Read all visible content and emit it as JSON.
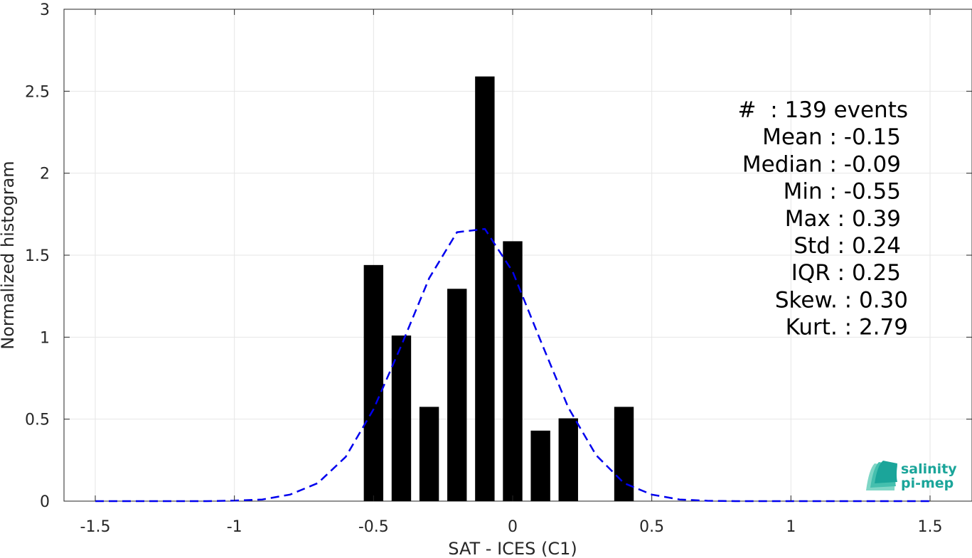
{
  "chart_data": {
    "type": "bar",
    "xlabel": "SAT - ICES (C1)",
    "ylabel": "Normalized histogram",
    "xlim": [
      -1.5,
      1.5
    ],
    "ylim": [
      0,
      3
    ],
    "xticks": [
      -1.5,
      -1,
      -0.5,
      0,
      0.5,
      1,
      1.5
    ],
    "xtick_labels": [
      "-1.5",
      "-1",
      "-0.5",
      "0",
      "0.5",
      "1",
      "1.5"
    ],
    "yticks": [
      0,
      0.5,
      1,
      1.5,
      2,
      2.5,
      3
    ],
    "ytick_labels": [
      "0",
      "0.5",
      "1",
      "1.5",
      "2",
      "2.5",
      "3"
    ],
    "grid": true,
    "bar_width": 0.07,
    "bars": [
      {
        "x": -0.5,
        "value": 1.44
      },
      {
        "x": -0.4,
        "value": 1.01
      },
      {
        "x": -0.3,
        "value": 0.575
      },
      {
        "x": -0.2,
        "value": 1.295
      },
      {
        "x": -0.1,
        "value": 2.59
      },
      {
        "x": 0.0,
        "value": 1.585
      },
      {
        "x": 0.1,
        "value": 0.43
      },
      {
        "x": 0.2,
        "value": 0.505
      },
      {
        "x": 0.4,
        "value": 0.575
      }
    ],
    "fit_curve": {
      "style": "dashed",
      "color": "#0000ee",
      "x": [
        -1.5,
        -1.4,
        -1.3,
        -1.2,
        -1.1,
        -1.0,
        -0.9,
        -0.8,
        -0.7,
        -0.6,
        -0.5,
        -0.4,
        -0.3,
        -0.2,
        -0.1,
        0.0,
        0.1,
        0.2,
        0.3,
        0.4,
        0.5,
        0.6,
        0.7,
        0.8,
        0.9,
        1.0,
        1.1,
        1.2,
        1.3,
        1.4,
        1.5
      ],
      "y": [
        0,
        0,
        0,
        0,
        0,
        0.003,
        0.01,
        0.04,
        0.11,
        0.27,
        0.56,
        0.95,
        1.36,
        1.64,
        1.66,
        1.4,
        0.98,
        0.57,
        0.28,
        0.11,
        0.04,
        0.01,
        0.002,
        0,
        0,
        0,
        0,
        0,
        0,
        0,
        0
      ]
    },
    "stats_lines": [
      "#  : 139 events",
      "Mean : -0.15",
      "Median : -0.09",
      "Min : -0.55",
      "Max : 0.39",
      "Std : 0.24",
      "IQR : 0.25",
      "Skew. : 0.30",
      "Kurt. : 2.79"
    ],
    "colors": {
      "bars": "#000000",
      "curve": "#0000ee",
      "grid": "#e6e6e6",
      "axes": "#262626"
    }
  },
  "logo": {
    "line1": "salinity",
    "line2": "pi-mep",
    "color": "#1ba59a",
    "icon": "salinity-wave-icon"
  }
}
